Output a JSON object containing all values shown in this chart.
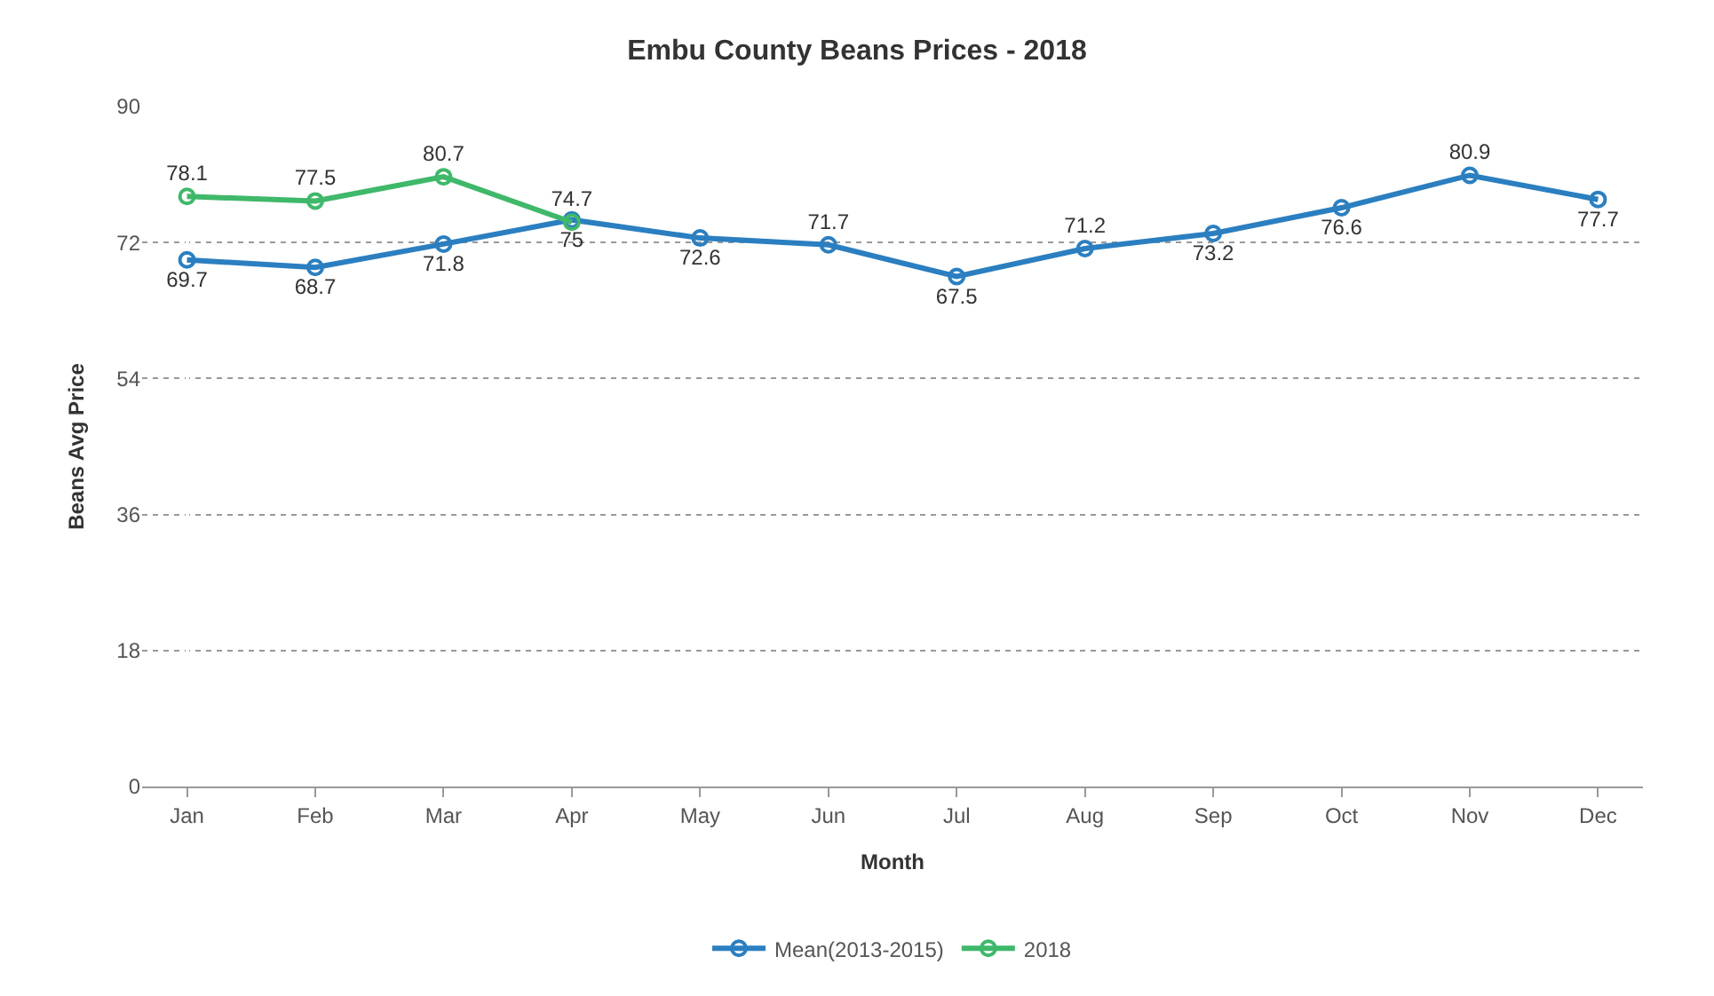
{
  "chart_data": {
    "type": "line",
    "title": "Embu County Beans Prices - 2018",
    "xlabel": "Month",
    "ylabel": "Beans Avg Price",
    "categories": [
      "Jan",
      "Feb",
      "Mar",
      "Apr",
      "May",
      "Jun",
      "Jul",
      "Aug",
      "Sep",
      "Oct",
      "Nov",
      "Dec"
    ],
    "series": [
      {
        "name": "Mean(2013-2015)",
        "color": "#2b7fc0",
        "values": [
          69.7,
          68.7,
          71.8,
          75,
          72.6,
          71.7,
          67.5,
          71.2,
          73.2,
          76.6,
          80.9,
          77.7
        ]
      },
      {
        "name": "2018",
        "color": "#3fb86a",
        "values": [
          78.1,
          77.5,
          80.7,
          74.7,
          null,
          null,
          null,
          null,
          null,
          null,
          null,
          null
        ]
      }
    ],
    "ylim": [
      0,
      90
    ],
    "yticks": [
      0,
      18,
      36,
      54,
      72,
      90
    ],
    "grid": "y",
    "legend": "bottom",
    "marker": "circle",
    "line_style": "solid",
    "data_labels": true
  }
}
